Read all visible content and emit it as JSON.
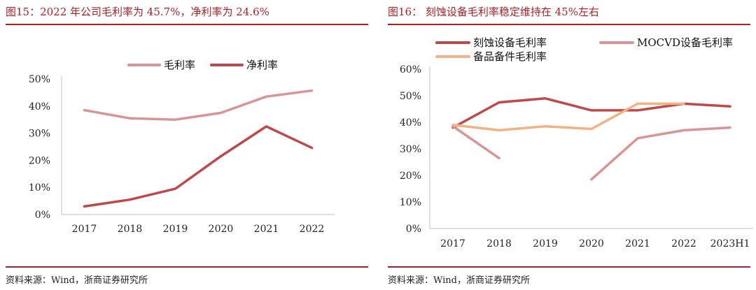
{
  "colors": {
    "accent": "#b01e24",
    "gross": "#d99594",
    "net": "#c0484a",
    "etch": "#c0484a",
    "mocvd": "#d99594",
    "parts": "#f4b183"
  },
  "left": {
    "title": "图15：2022 年公司毛利率为 45.7%，净利率为 24.6%",
    "source": "资料来源：Wind，浙商证券研究所"
  },
  "right": {
    "title": "图16：  刻蚀设备毛利率稳定维持在 45%左右",
    "source": "资料来源：Wind，浙商证券研究所"
  },
  "chart_data": [
    {
      "type": "line",
      "categories": [
        "2017",
        "2018",
        "2019",
        "2020",
        "2021",
        "2022"
      ],
      "yticks": [
        "0%",
        "10%",
        "20%",
        "30%",
        "40%",
        "50%"
      ],
      "ylim": [
        0,
        50
      ],
      "legend_position": "top",
      "series": [
        {
          "name": "毛利率",
          "color_key": "gross",
          "values": [
            38.5,
            35.5,
            35.0,
            37.5,
            43.5,
            45.7
          ]
        },
        {
          "name": "净利率",
          "color_key": "net",
          "values": [
            3.0,
            5.5,
            9.5,
            21.5,
            32.5,
            24.6
          ]
        }
      ]
    },
    {
      "type": "line",
      "categories": [
        "2017",
        "2018",
        "2019",
        "2020",
        "2021",
        "2022",
        "2023H1"
      ],
      "yticks": [
        "0%",
        "10%",
        "20%",
        "30%",
        "40%",
        "50%",
        "60%"
      ],
      "ylim": [
        0,
        60
      ],
      "legend_position": "top",
      "series": [
        {
          "name": "刻蚀设备毛利率",
          "color_key": "etch",
          "values": [
            38.0,
            47.5,
            49.0,
            44.5,
            44.5,
            47.0,
            46.0
          ]
        },
        {
          "name": "MOCVD设备毛利率",
          "color_key": "mocvd",
          "values": [
            38.5,
            26.5,
            null,
            18.5,
            34.0,
            37.0,
            38.0
          ]
        },
        {
          "name": "备品备件毛利率",
          "color_key": "parts",
          "values": [
            39.0,
            37.0,
            38.5,
            37.5,
            47.0,
            47.0,
            null
          ]
        }
      ]
    }
  ]
}
